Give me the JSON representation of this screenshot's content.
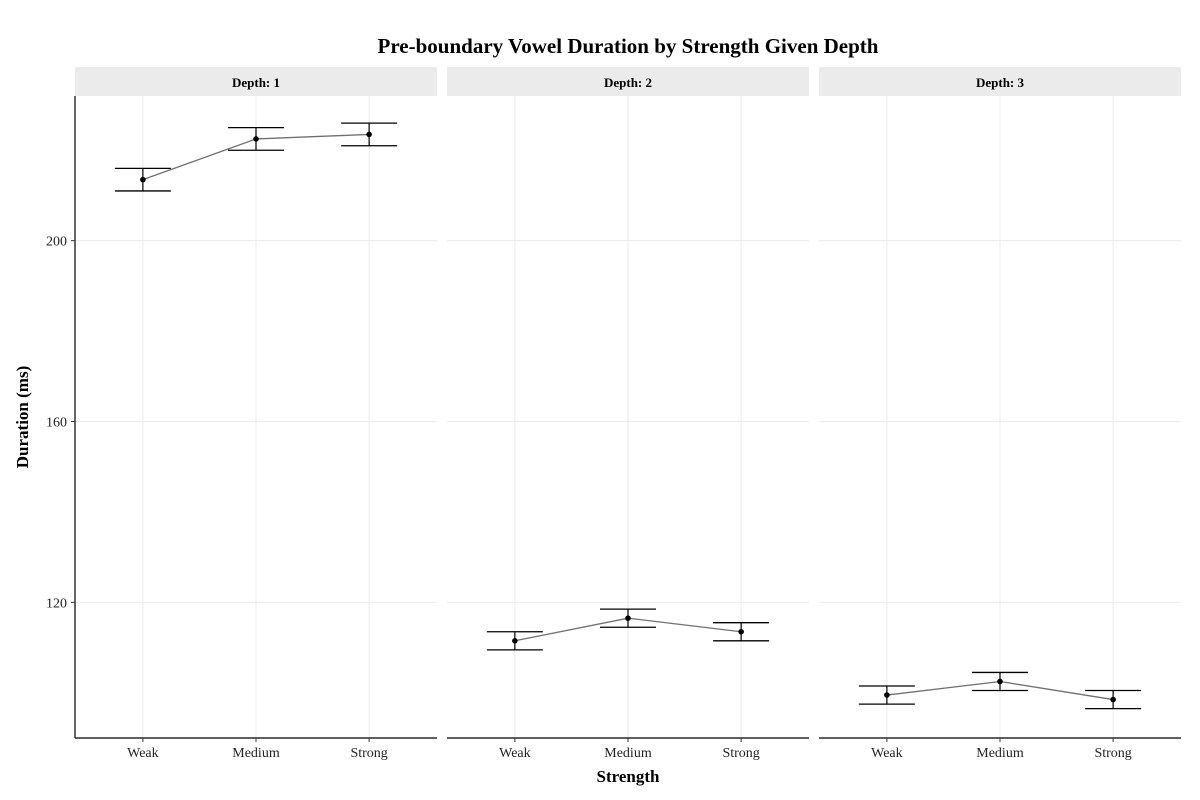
{
  "chart_data": {
    "type": "line",
    "title": "Pre-boundary Vowel Duration by Strength Given Depth",
    "xlabel": "Strength",
    "ylabel": "Duration (ms)",
    "categories": [
      "Weak",
      "Medium",
      "Strong"
    ],
    "ylim": [
      90,
      232
    ],
    "yticks": [
      120,
      160,
      200
    ],
    "grid": true,
    "error_bars": true,
    "colors": {
      "line": "#707070",
      "point": "#000000",
      "errorbar": "#000000",
      "strip": "#ebebeb",
      "grid": "#ebebeb"
    },
    "panels": [
      {
        "label": "Depth: 1",
        "values": [
          213.5,
          222.5,
          223.5
        ],
        "lower": [
          211.0,
          220.0,
          221.0
        ],
        "upper": [
          216.0,
          225.0,
          226.0
        ]
      },
      {
        "label": "Depth: 2",
        "values": [
          111.5,
          116.5,
          113.5
        ],
        "lower": [
          109.5,
          114.5,
          111.5
        ],
        "upper": [
          113.5,
          118.5,
          115.5
        ]
      },
      {
        "label": "Depth: 3",
        "values": [
          99.5,
          102.5,
          98.5
        ],
        "lower": [
          97.5,
          100.5,
          96.5
        ],
        "upper": [
          101.5,
          104.5,
          100.5
        ]
      }
    ]
  }
}
